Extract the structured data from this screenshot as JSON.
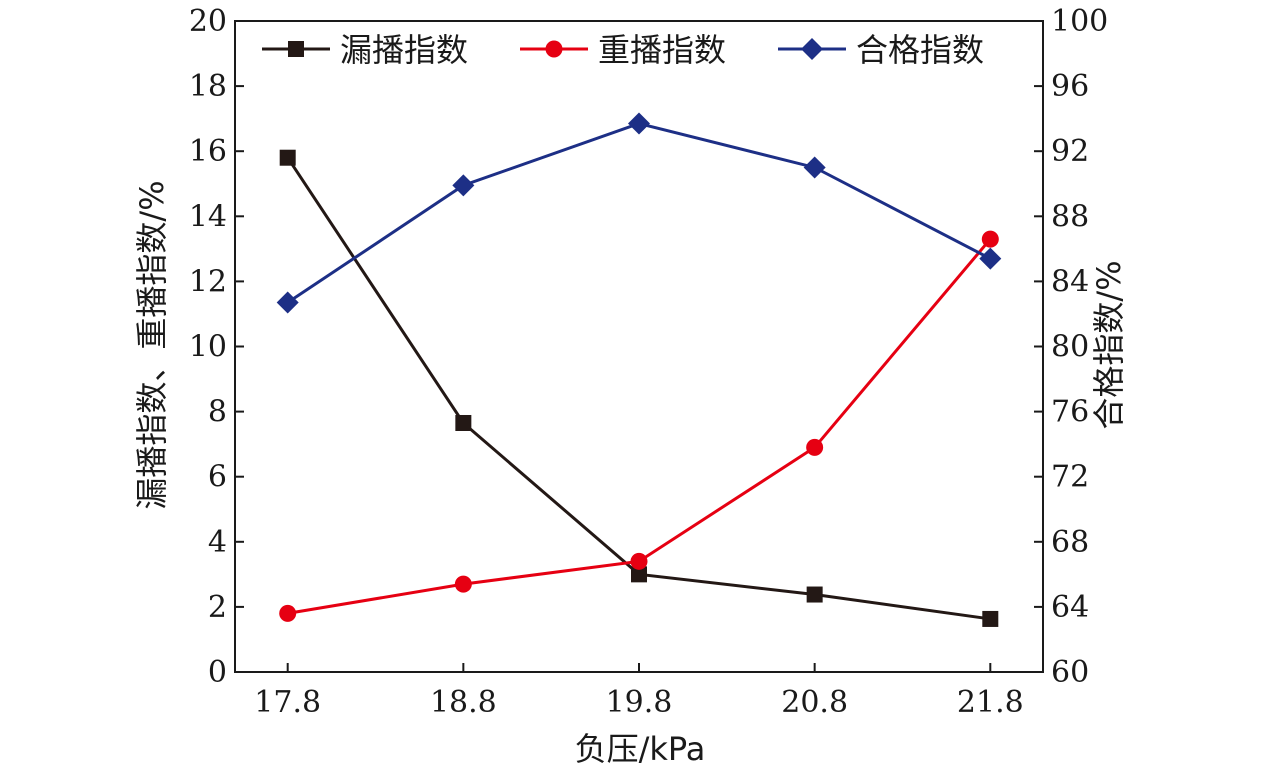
{
  "chart_data": {
    "type": "line",
    "x": [
      17.8,
      18.8,
      19.8,
      20.8,
      21.8
    ],
    "x_tick_labels": [
      "17.8",
      "18.8",
      "19.8",
      "20.8",
      "21.8"
    ],
    "xlabel": "负压/kPa",
    "ylabel_left": "漏播指数、重播指数/%",
    "ylabel_right": "合格指数/%",
    "ylim_left": [
      0,
      20
    ],
    "ylim_right": [
      60,
      100
    ],
    "y_left_ticks": [
      "0",
      "2",
      "4",
      "6",
      "8",
      "10",
      "12",
      "14",
      "16",
      "18",
      "20"
    ],
    "y_right_ticks": [
      "60",
      "64",
      "68",
      "72",
      "76",
      "80",
      "84",
      "88",
      "92",
      "96",
      "100"
    ],
    "grid": false,
    "legend_position": "top",
    "series": [
      {
        "name": "漏播指数",
        "axis": "left",
        "color": "#231815",
        "marker": "square",
        "values": [
          15.8,
          7.65,
          3.0,
          2.38,
          1.63
        ]
      },
      {
        "name": "重播指数",
        "axis": "left",
        "color": "#e60012",
        "marker": "circle",
        "values": [
          1.8,
          2.7,
          3.4,
          6.9,
          13.3
        ]
      },
      {
        "name": "合格指数",
        "axis": "right",
        "color": "#1d2f86",
        "marker": "diamond",
        "values": [
          82.7,
          89.9,
          93.7,
          91.0,
          85.4
        ]
      }
    ]
  }
}
